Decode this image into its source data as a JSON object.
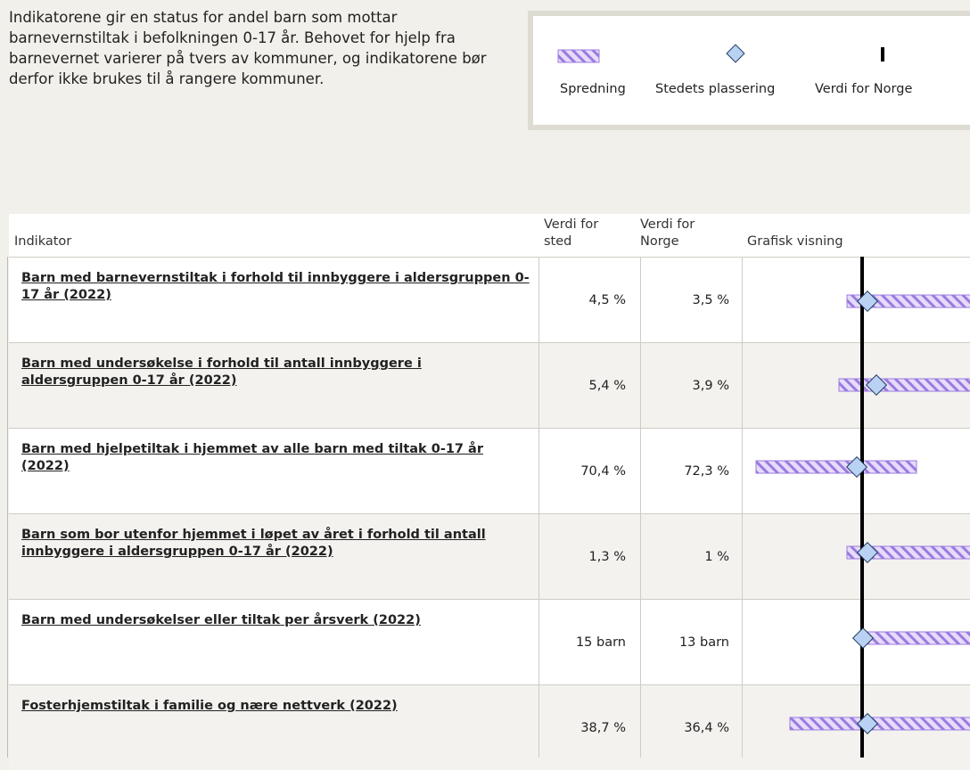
{
  "intro": "Indikatorene gir en status for andel barn som mottar barnevernstiltak i befolkningen 0-17 år. Behovet for hjelp fra barnevernet varierer på tvers av kommuner, og indikatorene bør derfor ikke brukes til å rangere kommuner.",
  "legend": [
    "Spredning",
    "Stedets plassering",
    "Verdi for Norge"
  ],
  "table": {
    "headers": [
      "Indikator",
      "Verdi for sted",
      "Verdi for Norge",
      "Grafisk visning"
    ],
    "rows": [
      [
        "Barn med barnevernstiltak i forhold til innbyggere i aldersgruppen 0-17 år (2022)",
        "4,5 %",
        "3,5 %"
      ],
      [
        "Barn med undersøkelse i forhold til antall innbyggere i aldersgruppen 0-17 år (2022)",
        "5,4 %",
        "3,9 %"
      ],
      [
        "Barn med hjelpetiltak i hjemmet av alle barn med tiltak 0-17 år (2022)",
        "70,4 %",
        "72,3 %"
      ],
      [
        "Barn som bor utenfor hjemmet i løpet av året i forhold til antall innbyggere i aldersgruppen 0-17 år (2022)",
        "1,3 %",
        "1 %"
      ],
      [
        "Barn med undersøkelser eller tiltak per årsverk (2022)",
        "15 barn",
        "13 barn"
      ],
      [
        "Fosterhjemstiltak i familie og nære nettverk (2022)",
        "38,7 %",
        "36,4 %"
      ]
    ]
  }
}
